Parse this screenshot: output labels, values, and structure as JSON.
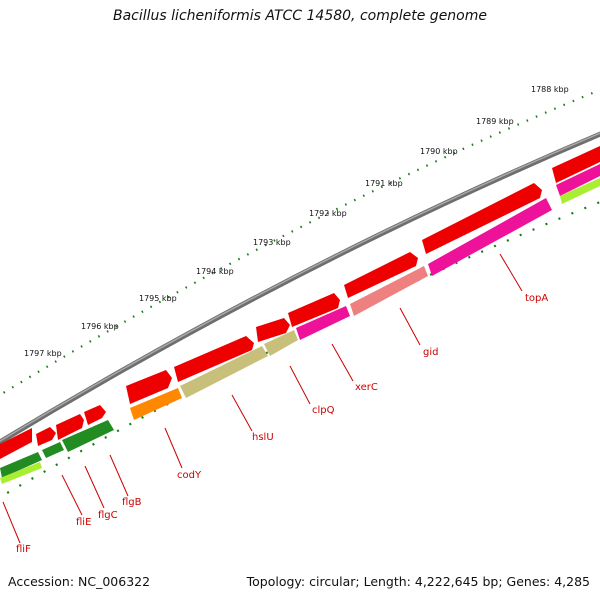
{
  "header": {
    "title": "Bacillus licheniformis ATCC 14580, complete genome"
  },
  "footer": {
    "accession": "Accession: NC_006322",
    "summary": "Topology: circular; Length: 4,222,645 bp; Genes: 4,285"
  },
  "colors": {
    "backbone": "#808080",
    "forward_gene": "#ee0000",
    "reverse_gene_dark_green": "#228b22",
    "reverse_gene_light_green": "#aaee33",
    "codY": "#ff8800",
    "hslU_clpQ": "#c8c07a",
    "xerC_topA": "#ee1199",
    "gid": "#ee8080",
    "tick": "#1a7a1a",
    "label": "#cc0000"
  },
  "scale_labels": [
    "1788 kbp",
    "1789 kbp",
    "1790 kbp",
    "1791 kbp",
    "1792 kbp",
    "1793 kbp",
    "1794 kbp",
    "1795 kbp",
    "1796 kbp",
    "1797 kbp"
  ],
  "gene_labels": [
    "topA",
    "gid",
    "xerC",
    "clpQ",
    "hslU",
    "codY",
    "flgB",
    "flgC",
    "fliE",
    "fliF"
  ]
}
